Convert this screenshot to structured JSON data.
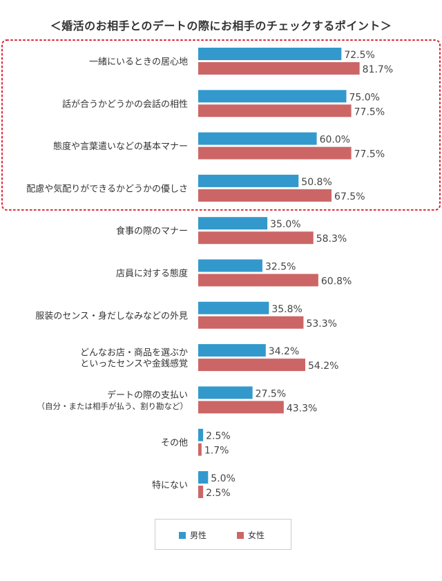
{
  "chart_data": {
    "type": "bar",
    "orientation": "horizontal",
    "title": "＜婚活のお相手とのデートの際にお相手のチェックするポイント＞",
    "categories": [
      [
        "一緒にいるときの居心地"
      ],
      [
        "話が合うかどうかの会話の相性"
      ],
      [
        "態度や言葉遣いなどの基本マナー"
      ],
      [
        "配慮や気配りができるかどうかの優しさ"
      ],
      [
        "食事の際のマナー"
      ],
      [
        "店員に対する態度"
      ],
      [
        "服装のセンス・身だしなみなどの外見"
      ],
      [
        "どんなお店・商品を選ぶか",
        "といったセンスや金銭感覚"
      ],
      [
        "デートの際の支払い",
        "（自分・または相手が払う、割り勘など）"
      ],
      [
        "その他"
      ],
      [
        "特にない"
      ]
    ],
    "series": [
      {
        "name": "男性",
        "color": "#3399cc",
        "values": [
          72.5,
          75.0,
          60.0,
          50.8,
          35.0,
          32.5,
          35.8,
          34.2,
          27.5,
          2.5,
          5.0
        ],
        "labels": [
          "72.5%",
          "75.0%",
          "60.0%",
          "50.8%",
          "35.0%",
          "32.5%",
          "35.8%",
          "34.2%",
          "27.5%",
          "2.5%",
          "5.0%"
        ]
      },
      {
        "name": "女性",
        "color": "#cc6666",
        "values": [
          81.7,
          77.5,
          77.5,
          67.5,
          58.3,
          60.8,
          53.3,
          54.2,
          43.3,
          1.7,
          2.5
        ],
        "labels": [
          "81.7%",
          "77.5%",
          "77.5%",
          "67.5%",
          "58.3%",
          "60.8%",
          "53.3%",
          "54.2%",
          "43.3%",
          "1.7%",
          "2.5%"
        ]
      }
    ],
    "highlight_first_n": 4,
    "highlight_color": "#dd2233",
    "legend_position": "bottom",
    "grid": false
  }
}
